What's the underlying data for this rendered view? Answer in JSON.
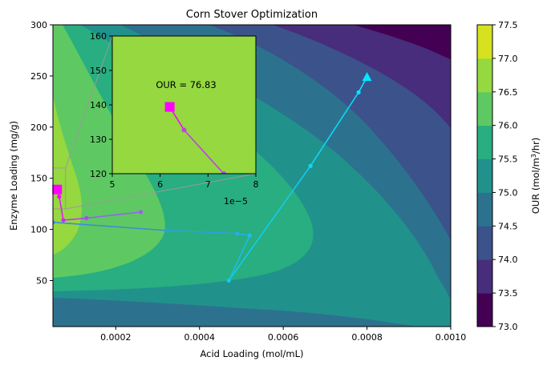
{
  "chart_data": {
    "type": "contour",
    "title": "Corn Stover Optimization",
    "xlabel": "Acid Loading (mol/mL)",
    "ylabel": "Enzyme Loading (mg/g)",
    "xlim": [
      5e-05,
      0.001
    ],
    "ylim": [
      5,
      300
    ],
    "xticks": [
      {
        "v": 0.0002,
        "label": "0.0002"
      },
      {
        "v": 0.0004,
        "label": "0.0004"
      },
      {
        "v": 0.0006,
        "label": "0.0006"
      },
      {
        "v": 0.0008,
        "label": "0.0008"
      },
      {
        "v": 0.001,
        "label": "0.0010"
      }
    ],
    "yticks": [
      {
        "v": 50,
        "label": "50"
      },
      {
        "v": 100,
        "label": "100"
      },
      {
        "v": 150,
        "label": "150"
      },
      {
        "v": 200,
        "label": "200"
      },
      {
        "v": 250,
        "label": "250"
      },
      {
        "v": 300,
        "label": "300"
      }
    ],
    "colorbar": {
      "label_prefix": "OUR (mol/m",
      "label_sup": "3",
      "label_suffix": "/hr)",
      "levels": [
        73.0,
        73.5,
        74.0,
        74.5,
        75.0,
        75.5,
        76.0,
        76.5,
        77.0,
        77.5
      ],
      "level_labels": [
        "73.0",
        "73.5",
        "74.0",
        "74.5",
        "75.0",
        "75.5",
        "76.0",
        "76.5",
        "77.0",
        "77.5"
      ],
      "colors": [
        "#440154",
        "#472d7b",
        "#3b528b",
        "#2c728e",
        "#21918c",
        "#28ae80",
        "#5ec962",
        "#95d840",
        "#d6e21f"
      ]
    },
    "paths": [
      {
        "color": "#00e8ff",
        "end_color": "#3a8fd6",
        "points": [
          [
            0.0008,
            249
          ],
          [
            0.00078,
            234
          ],
          [
            0.000665,
            162
          ],
          [
            0.00047,
            50
          ],
          [
            0.00052,
            94
          ],
          [
            0.00049,
            96
          ],
          [
            0.00032,
            99
          ],
          [
            5e-05,
            107
          ]
        ],
        "start_marker": "triangle"
      },
      {
        "color": "#ff00ff",
        "end_color": "#9a5ff0",
        "points": [
          [
            6e-05,
            139
          ],
          [
            6.5e-05,
            132
          ],
          [
            7.5e-05,
            109
          ],
          [
            0.00013,
            111
          ],
          [
            0.00026,
            117
          ]
        ],
        "start_marker": "square"
      }
    ],
    "inset": {
      "xlim": [
        5e-05,
        8e-05
      ],
      "ylim": [
        120,
        160
      ],
      "xticks": [
        {
          "v": 5e-05,
          "label": "5"
        },
        {
          "v": 6e-05,
          "label": "6"
        },
        {
          "v": 7e-05,
          "label": "7"
        },
        {
          "v": 8e-05,
          "label": "8"
        }
      ],
      "yticks": [
        {
          "v": 120,
          "label": "120"
        },
        {
          "v": 130,
          "label": "130"
        },
        {
          "v": 140,
          "label": "140"
        },
        {
          "v": 150,
          "label": "150"
        },
        {
          "v": 160,
          "label": "160"
        }
      ],
      "offset_text": "1e−5",
      "annotation": "OUR = 76.83",
      "points": [
        [
          6.2e-05,
          139.4
        ],
        [
          6.5e-05,
          132.7
        ],
        [
          7.33e-05,
          120
        ]
      ],
      "background": "#95d840",
      "zoom_box": {
        "x": [
          5e-05,
          8e-05
        ],
        "y": [
          120,
          160
        ]
      }
    }
  }
}
